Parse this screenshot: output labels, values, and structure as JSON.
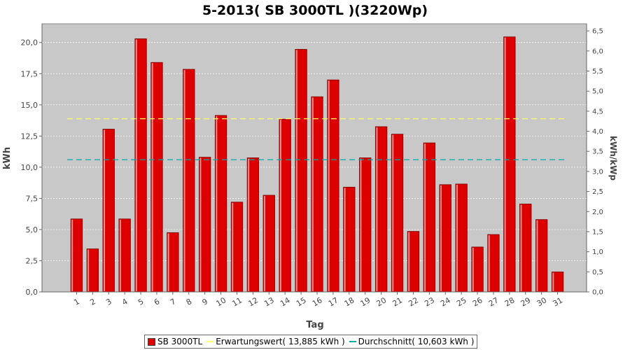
{
  "chart_data": {
    "type": "bar",
    "title": "5-2013( SB 3000TL )(3220Wp)",
    "xlabel": "Tag",
    "ylabel": "kWh",
    "ylabel_right": "kWh/kWp",
    "ylim": [
      0,
      21.5
    ],
    "ylim_right": [
      0,
      6.677
    ],
    "grid": true,
    "legend_position": "bottom",
    "categories": [
      "1",
      "2",
      "3",
      "4",
      "5",
      "6",
      "7",
      "8",
      "9",
      "10",
      "11",
      "12",
      "13",
      "14",
      "15",
      "16",
      "17",
      "18",
      "19",
      "20",
      "21",
      "22",
      "23",
      "24",
      "25",
      "26",
      "27",
      "28",
      "29",
      "30",
      "31"
    ],
    "y_ticks": [
      "0,0",
      "2,5",
      "5,0",
      "7,5",
      "10,0",
      "12,5",
      "15,0",
      "17,5",
      "20,0"
    ],
    "y_tick_values": [
      0,
      2.5,
      5,
      7.5,
      10,
      12.5,
      15,
      17.5,
      20
    ],
    "y_right_ticks": [
      "0,0",
      "0,5",
      "1,0",
      "1,5",
      "2,0",
      "2,5",
      "3,0",
      "3,5",
      "4,0",
      "4,5",
      "5,0",
      "5,5",
      "6,0",
      "6,5"
    ],
    "y_right_tick_values": [
      0,
      0.5,
      1.0,
      1.5,
      2.0,
      2.5,
      3.0,
      3.5,
      4.0,
      4.5,
      5.0,
      5.5,
      6.0,
      6.5
    ],
    "series": [
      {
        "name": "SB 3000TL",
        "color": "#dd0000",
        "values": [
          5.85,
          3.45,
          13.05,
          5.85,
          20.3,
          18.4,
          4.75,
          17.85,
          10.8,
          14.15,
          7.2,
          10.75,
          7.75,
          13.85,
          19.45,
          15.65,
          17.0,
          8.4,
          10.75,
          13.25,
          12.65,
          4.85,
          11.95,
          8.6,
          8.65,
          3.6,
          4.6,
          20.45,
          7.05,
          5.8,
          1.6
        ]
      }
    ],
    "reference_lines": [
      {
        "name": "Erwartungswert( 13,885 kWh )",
        "value": 13.885,
        "color": "#ffff66",
        "style": "dashed"
      },
      {
        "name": "Durchschnitt( 10,603 kWh )",
        "value": 10.603,
        "color": "#00aaaa",
        "style": "dashed"
      }
    ]
  },
  "legend": {
    "bar_label": "SB 3000TL",
    "expected_label": "Erwartungswert( 13,885 kWh )",
    "average_label": "Durchschnitt( 10,603 kWh )"
  },
  "colors": {
    "plot_background": "#c8c8c8",
    "bar": "#dd0000",
    "expected": "#ffff66",
    "average": "#00aaaa"
  }
}
